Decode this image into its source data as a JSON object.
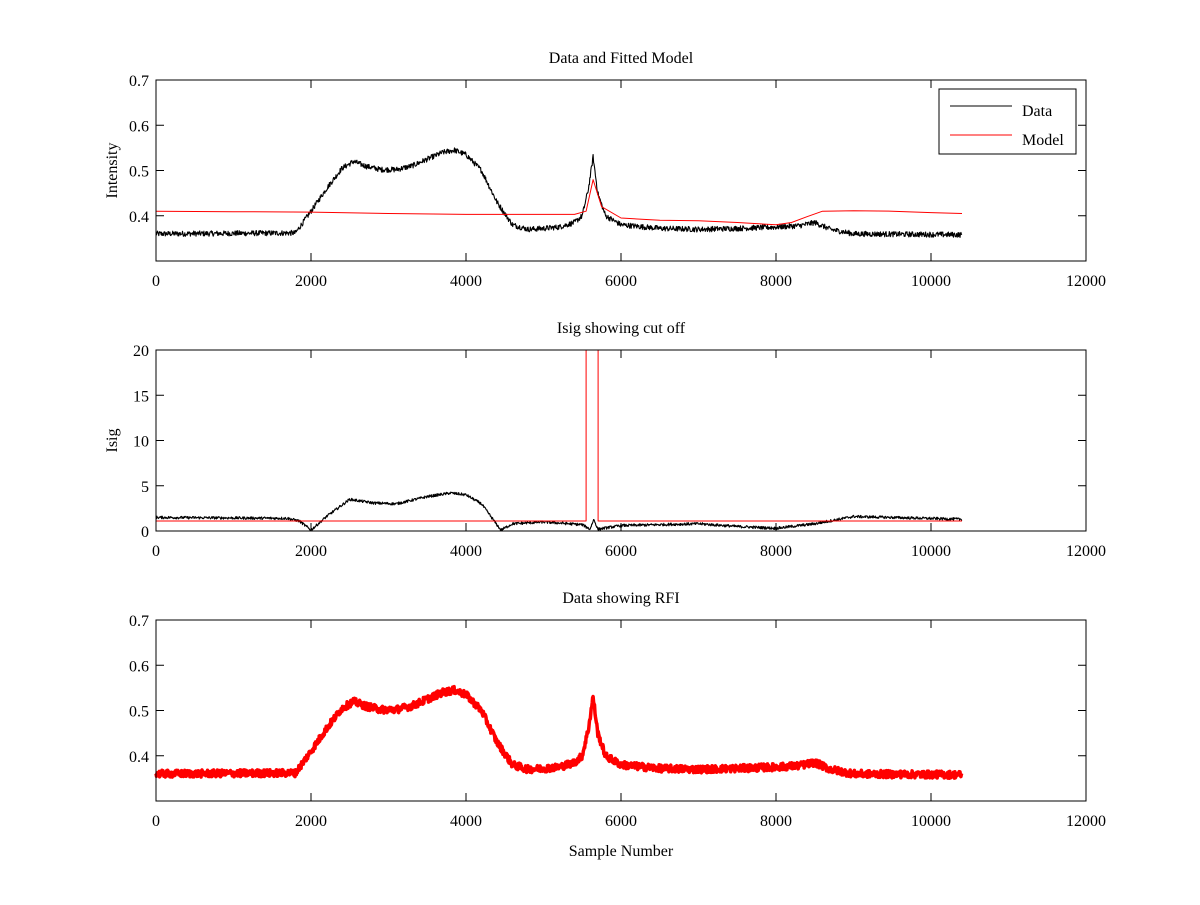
{
  "chart_data": [
    {
      "type": "line",
      "title": "Data and Fitted Model",
      "xlabel": "",
      "ylabel": "Intensity",
      "xlim": [
        0,
        12000
      ],
      "ylim": [
        0.3,
        0.7
      ],
      "xticks": [
        "0",
        "2000",
        "4000",
        "6000",
        "8000",
        "10000",
        "12000"
      ],
      "yticks": [
        "0.4",
        "0.5",
        "0.6",
        "0.7"
      ],
      "ytick_values": [
        0.4,
        0.5,
        0.6,
        0.7
      ],
      "legend": {
        "placement": "top-right",
        "entries": [
          "Data",
          "Model"
        ]
      },
      "series": [
        {
          "name": "Data",
          "color": "#000000",
          "x": [
            0,
            1800,
            2000,
            2200,
            2400,
            2550,
            2700,
            2900,
            3100,
            3300,
            3500,
            3700,
            3850,
            4000,
            4200,
            4400,
            4600,
            4800,
            5000,
            5200,
            5400,
            5500,
            5580,
            5640,
            5700,
            5800,
            6000,
            6500,
            7000,
            7500,
            8000,
            8300,
            8500,
            8700,
            9000,
            10400
          ],
          "y": [
            0.36,
            0.362,
            0.41,
            0.46,
            0.505,
            0.52,
            0.51,
            0.502,
            0.502,
            0.51,
            0.525,
            0.54,
            0.545,
            0.535,
            0.5,
            0.43,
            0.38,
            0.37,
            0.372,
            0.375,
            0.385,
            0.4,
            0.46,
            0.53,
            0.45,
            0.4,
            0.38,
            0.372,
            0.37,
            0.372,
            0.375,
            0.378,
            0.385,
            0.37,
            0.36,
            0.358
          ],
          "noise": 0.006
        },
        {
          "name": "Model",
          "color": "#ff0000",
          "x": [
            0,
            1000,
            2000,
            3000,
            4000,
            5400,
            5550,
            5640,
            5750,
            6000,
            6500,
            7000,
            7500,
            8000,
            8200,
            8400,
            8600,
            9000,
            9500,
            10000,
            10400
          ],
          "y": [
            0.41,
            0.409,
            0.408,
            0.405,
            0.403,
            0.403,
            0.41,
            0.48,
            0.42,
            0.395,
            0.39,
            0.389,
            0.385,
            0.38,
            0.385,
            0.398,
            0.41,
            0.411,
            0.41,
            0.407,
            0.405
          ],
          "noise": 0
        }
      ]
    },
    {
      "type": "line",
      "title": "Isig showing cut off",
      "xlabel": "",
      "ylabel": "Isig",
      "xlim": [
        0,
        12000
      ],
      "ylim": [
        0,
        20
      ],
      "xticks": [
        "0",
        "2000",
        "4000",
        "6000",
        "8000",
        "10000",
        "12000"
      ],
      "yticks": [
        "0",
        "5",
        "10",
        "15",
        "20"
      ],
      "ytick_values": [
        0,
        5,
        10,
        15,
        20
      ],
      "series": [
        {
          "name": "Isig",
          "color": "#000000",
          "x": [
            0,
            1700,
            1850,
            2000,
            2200,
            2500,
            2800,
            3100,
            3500,
            3800,
            4000,
            4200,
            4450,
            4600,
            5000,
            5500,
            5600,
            5650,
            5700,
            6000,
            7000,
            7500,
            8000,
            8500,
            9000,
            10400
          ],
          "y": [
            1.5,
            1.4,
            1.1,
            0.1,
            1.6,
            3.5,
            3.1,
            3.0,
            3.8,
            4.2,
            4.0,
            3.0,
            0.1,
            0.8,
            1.0,
            0.7,
            0.2,
            1.3,
            0.2,
            0.6,
            0.8,
            0.5,
            0.3,
            0.8,
            1.6,
            1.3
          ],
          "noise": 0.15
        },
        {
          "name": "Cut off",
          "color": "#ff0000",
          "x": [
            0,
            5550,
            5550,
            5705,
            5705,
            10400
          ],
          "y": [
            1.1,
            1.1,
            20,
            20,
            1.1,
            1.1
          ],
          "noise": 0
        }
      ]
    },
    {
      "type": "line",
      "title": "Data showing RFI",
      "xlabel": "Sample Number",
      "ylabel": "",
      "xlim": [
        0,
        12000
      ],
      "ylim": [
        0.3,
        0.7
      ],
      "xticks": [
        "0",
        "2000",
        "4000",
        "6000",
        "8000",
        "10000",
        "12000"
      ],
      "yticks": [
        "0.4",
        "0.5",
        "0.6",
        "0.7"
      ],
      "ytick_values": [
        0.4,
        0.5,
        0.6,
        0.7
      ],
      "series": [
        {
          "name": "RFI",
          "color": "#ff0000",
          "x": [
            0,
            1800,
            2000,
            2200,
            2400,
            2550,
            2700,
            2900,
            3100,
            3300,
            3500,
            3700,
            3850,
            4000,
            4200,
            4400,
            4600,
            4800,
            5000,
            5200,
            5400,
            5500,
            5580,
            5640,
            5700,
            5800,
            6000,
            6500,
            7000,
            7500,
            8000,
            8300,
            8500,
            8700,
            9000,
            10400
          ],
          "y": [
            0.36,
            0.362,
            0.41,
            0.46,
            0.505,
            0.52,
            0.51,
            0.502,
            0.502,
            0.51,
            0.525,
            0.54,
            0.545,
            0.535,
            0.5,
            0.43,
            0.38,
            0.37,
            0.372,
            0.375,
            0.385,
            0.4,
            0.46,
            0.53,
            0.45,
            0.4,
            0.38,
            0.372,
            0.37,
            0.372,
            0.375,
            0.378,
            0.385,
            0.37,
            0.36,
            0.358
          ],
          "noise": 0.008
        }
      ]
    }
  ]
}
